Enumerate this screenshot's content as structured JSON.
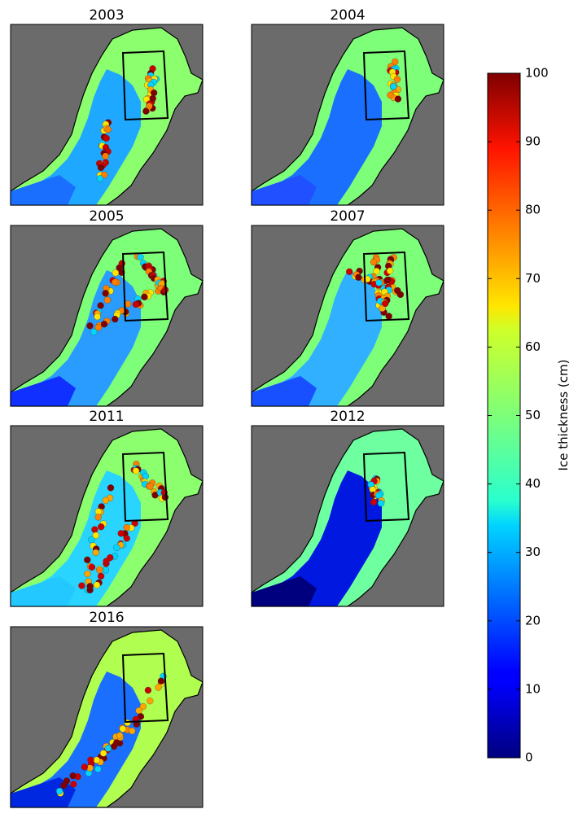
{
  "panels": [
    {
      "title": "2003"
    },
    {
      "title": "2004"
    },
    {
      "title": "2005"
    },
    {
      "title": "2007"
    },
    {
      "title": "2011"
    },
    {
      "title": "2012"
    },
    {
      "title": "2016"
    }
  ],
  "colorbar": {
    "label": "Ice thickness (cm)",
    "lim": [
      0,
      100
    ],
    "ticks": [
      0,
      10,
      20,
      30,
      40,
      50,
      60,
      70,
      80,
      90,
      100
    ]
  }
}
